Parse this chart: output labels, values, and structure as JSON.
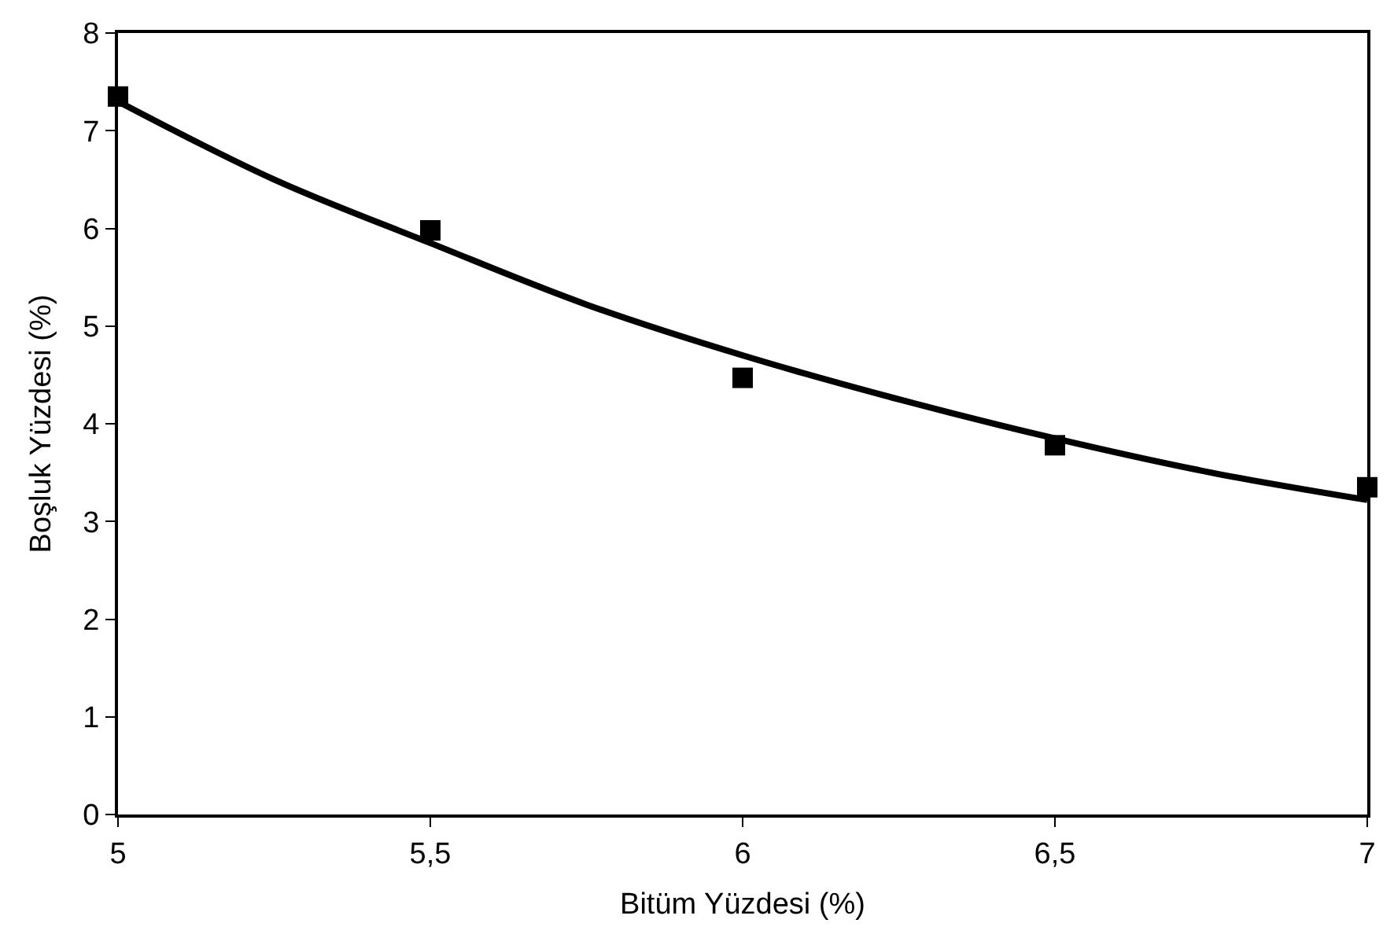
{
  "chart_data": {
    "type": "scatter",
    "xlabel": "Bitüm Yüzdesi (%)",
    "ylabel": "Boşluk Yüzdesi (%)",
    "xlim": [
      5,
      7
    ],
    "xticks": [
      5,
      {
        "value": 5.5,
        "label": "5,5"
      },
      6,
      {
        "value": 6.5,
        "label": "6,5"
      },
      7
    ],
    "ylim": [
      0,
      8
    ],
    "yticks": [
      0,
      1,
      2,
      3,
      4,
      5,
      6,
      7,
      8
    ],
    "legend": false,
    "series": [
      {
        "marker": "square",
        "color": "#000000",
        "x": [
          5,
          5.5,
          6,
          6.5,
          7
        ],
        "values": [
          7.35,
          5.98,
          4.47,
          3.78,
          3.35
        ]
      },
      {
        "type": "line",
        "marker": "none",
        "line_style": "solid",
        "color": "#000000",
        "x": [
          5,
          5.25,
          5.5,
          5.75,
          6,
          6.25,
          6.5,
          6.75,
          7
        ],
        "values": [
          7.3,
          6.5,
          5.85,
          5.22,
          4.7,
          4.25,
          3.85,
          3.5,
          3.22
        ]
      }
    ]
  }
}
